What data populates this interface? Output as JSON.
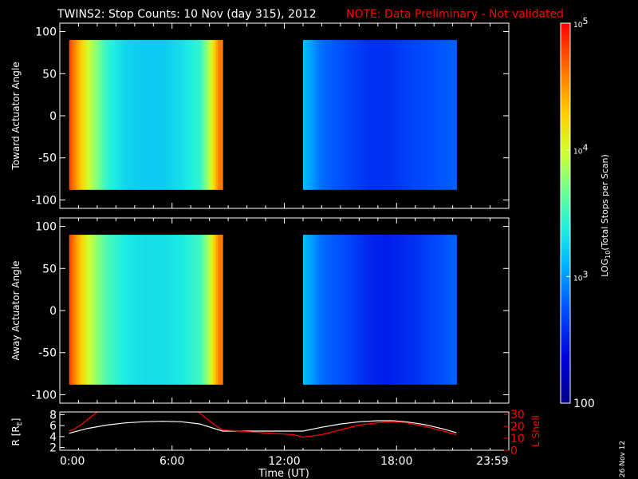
{
  "header": {
    "title": "TWINS2: Stop Counts: 10 Nov (day 315), 2012",
    "note": "NOTE: Data Preliminary - Not validated"
  },
  "date_stamp": "26 Nov 12",
  "colors": {
    "background": "#000000",
    "foreground": "#ffffff",
    "note": "#ff0000",
    "l_shell_line": "#ff0000",
    "r_line": "#ffffff"
  },
  "colorbar": {
    "label": "LOG10(Total Stops per Scan)",
    "label_base": "LOG",
    "label_sub": "10",
    "label_rest": "(Total Stops per Scan)",
    "scale": "log",
    "range": [
      100,
      100000
    ],
    "ticks": [
      {
        "value": 100,
        "text": "100"
      },
      {
        "value": 1000,
        "base": "10",
        "exp": "3"
      },
      {
        "value": 10000,
        "base": "10",
        "exp": "4"
      },
      {
        "value": 100000,
        "base": "10",
        "exp": "5"
      }
    ]
  },
  "chart_data": [
    {
      "type": "heatmap",
      "ylabel": "Toward Actuator Angle",
      "xlim": [
        0,
        24
      ],
      "ylim": [
        -110,
        110
      ],
      "y_ticks": [
        "100",
        "50",
        "0",
        "-50",
        "-100"
      ],
      "y_tick_values": [
        100,
        50,
        0,
        -50,
        -100
      ],
      "z_scale": "log10",
      "segments": [
        {
          "t_start": 0.5,
          "t_end": 8.7,
          "angle_range": [
            -88,
            90
          ],
          "log10_counts_t": [
            0.5,
            1.0,
            1.5,
            2.5,
            3.5,
            4.5,
            5.5,
            6.5,
            7.5,
            8.0,
            8.5
          ],
          "log10_counts": [
            4.8,
            4.4,
            4.0,
            3.45,
            3.25,
            3.2,
            3.2,
            3.3,
            3.45,
            3.9,
            4.6
          ]
        },
        {
          "t_start": 13.0,
          "t_end": 21.2,
          "angle_range": [
            -88,
            90
          ],
          "log10_counts_t": [
            13.0,
            14.0,
            15.5,
            16.5,
            17.5,
            19.0,
            21.0
          ],
          "log10_counts": [
            3.15,
            2.85,
            2.7,
            2.6,
            2.6,
            2.7,
            2.8
          ]
        }
      ]
    },
    {
      "type": "heatmap",
      "ylabel": "Away Actuator Angle",
      "xlim": [
        0,
        24
      ],
      "ylim": [
        -110,
        110
      ],
      "y_ticks": [
        "100",
        "50",
        "0",
        "-50",
        "-100"
      ],
      "y_tick_values": [
        100,
        50,
        0,
        -50,
        -100
      ],
      "z_scale": "log10",
      "segments": [
        {
          "t_start": 0.5,
          "t_end": 8.7,
          "angle_range": [
            -88,
            90
          ],
          "log10_counts_t": [
            0.5,
            1.0,
            1.5,
            2.5,
            3.5,
            4.5,
            5.5,
            6.5,
            7.5,
            8.0,
            8.5
          ],
          "log10_counts": [
            4.8,
            4.4,
            4.0,
            3.55,
            3.35,
            3.3,
            3.3,
            3.35,
            3.5,
            3.9,
            4.6
          ]
        },
        {
          "t_start": 13.0,
          "t_end": 21.2,
          "angle_range": [
            -88,
            90
          ],
          "log10_counts_t": [
            13.0,
            14.0,
            15.5,
            16.5,
            17.5,
            19.0,
            21.0
          ],
          "log10_counts": [
            3.15,
            2.85,
            2.7,
            2.55,
            2.5,
            2.6,
            2.8
          ]
        }
      ]
    },
    {
      "type": "line",
      "xlabel": "Time (UT)",
      "ylabel": "R [R",
      "ylabel_sub": "E",
      "ylabel_end": "]",
      "y2label": "L Shell",
      "xlim": [
        0,
        24
      ],
      "x_tick_labels": [
        "0:00",
        "6:00",
        "12:00",
        "18:00",
        "23:59"
      ],
      "x_tick_values": [
        0,
        6,
        12,
        18,
        23.98
      ],
      "ylim": [
        1.5,
        8.5
      ],
      "y_ticks": [
        "8",
        "6",
        "4",
        "2"
      ],
      "y_tick_values": [
        8,
        6,
        4,
        2
      ],
      "y2lim": [
        0,
        32
      ],
      "y2_ticks": [
        "30",
        "20",
        "10",
        "0"
      ],
      "y2_tick_values": [
        30,
        20,
        10,
        0
      ],
      "series": [
        {
          "axis": "left",
          "x": [
            0.5,
            1.5,
            2.5,
            3.5,
            4.5,
            5.5,
            6.5,
            7.5,
            8.7,
            9.5,
            10.5,
            11.5,
            12.5,
            13.0,
            14.0,
            15.0,
            16.0,
            17.0,
            17.8,
            18.5,
            19.5,
            20.5,
            21.2
          ],
          "values": [
            4.6,
            5.5,
            6.1,
            6.5,
            6.7,
            6.8,
            6.7,
            6.3,
            5.0,
            5.0,
            5.0,
            5.0,
            5.0,
            5.0,
            5.7,
            6.3,
            6.7,
            6.9,
            6.9,
            6.7,
            6.2,
            5.4,
            4.7
          ]
        },
        {
          "axis": "right",
          "segments": [
            {
              "x": [
                0.5,
                0.8,
                1.2,
                1.6,
                2.0
              ],
              "values": [
                16,
                18,
                22,
                27,
                32
              ]
            },
            {
              "x": [
                7.4,
                7.8,
                8.2,
                8.7,
                10.5,
                12.5,
                13.0,
                14.0,
                15.0,
                16.0,
                17.0,
                17.8,
                18.5,
                19.5,
                20.5,
                21.2
              ],
              "values": [
                32,
                27,
                22,
                17,
                15,
                13,
                11,
                13,
                17,
                21,
                23,
                24,
                23,
                20,
                16,
                13
              ]
            }
          ]
        }
      ]
    }
  ]
}
